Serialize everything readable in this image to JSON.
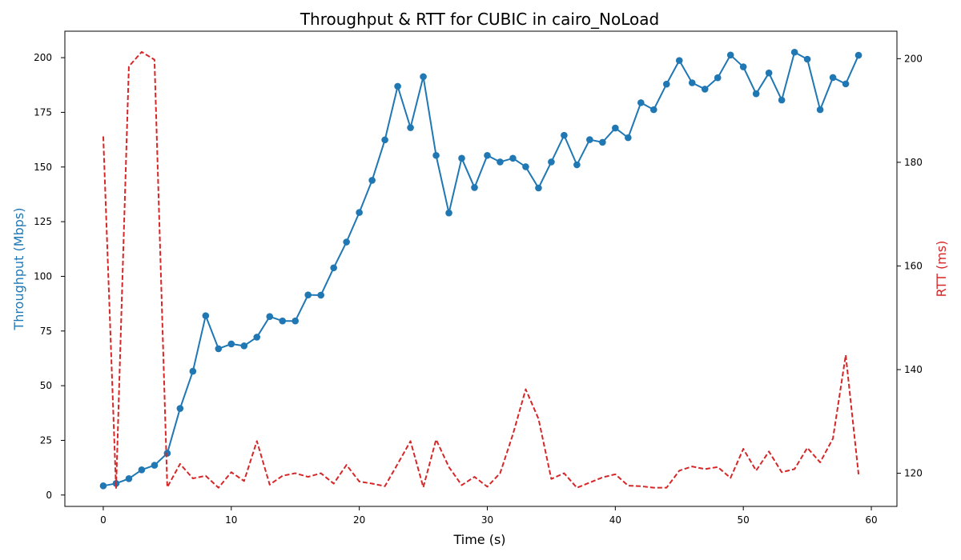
{
  "chart_data": {
    "type": "line",
    "title": "Throughput & RTT for CUBIC in cairo_NoLoad",
    "xlabel": "Time (s)",
    "ylabel_left": "Throughput (Mbps)",
    "ylabel_right": "RTT (ms)",
    "colors": {
      "throughput": "#1f77b4",
      "rtt": "#d62728"
    },
    "xlim": [
      -3,
      62
    ],
    "ylim_left": [
      -5.2,
      212.1
    ],
    "ylim_right": [
      113.6,
      205.3
    ],
    "x_ticks": [
      0,
      10,
      20,
      30,
      40,
      50,
      60
    ],
    "y_ticks_left": [
      0,
      25,
      50,
      75,
      100,
      125,
      150,
      175,
      200
    ],
    "y_ticks_right": [
      120,
      140,
      160,
      180,
      200
    ],
    "grid": false,
    "legend": "none",
    "x": [
      0,
      1,
      2,
      3,
      4,
      5,
      6,
      7,
      8,
      9,
      10,
      11,
      12,
      13,
      14,
      15,
      16,
      17,
      18,
      19,
      20,
      21,
      22,
      23,
      24,
      25,
      26,
      27,
      28,
      29,
      30,
      31,
      32,
      33,
      34,
      35,
      36,
      37,
      38,
      39,
      40,
      41,
      42,
      43,
      44,
      45,
      46,
      47,
      48,
      49,
      50,
      51,
      52,
      53,
      54,
      55,
      56,
      57,
      58,
      59
    ],
    "series": [
      {
        "key": "throughput",
        "axis": "left",
        "style": "solid-markers",
        "values": [
          4.2,
          5.3,
          7.5,
          11.5,
          13.6,
          19.1,
          39.6,
          56.6,
          82.0,
          66.9,
          69.1,
          68.2,
          72.2,
          81.6,
          79.6,
          79.6,
          91.5,
          91.4,
          103.9,
          115.7,
          129.2,
          143.9,
          162.4,
          186.9,
          168.0,
          191.3,
          155.3,
          129.0,
          154.0,
          140.6,
          155.3,
          152.3,
          154.0,
          150.1,
          140.4,
          152.3,
          164.5,
          151.0,
          162.5,
          161.3,
          167.8,
          163.4,
          179.4,
          176.2,
          187.9,
          198.7,
          188.5,
          185.6,
          190.8,
          201.2,
          195.8,
          183.5,
          193.0,
          180.6,
          202.5,
          199.3,
          176.2,
          190.9,
          188.0,
          201.1
        ]
      },
      {
        "key": "rtt",
        "axis": "right",
        "style": "dashed",
        "values": [
          185.0,
          117.0,
          198.5,
          201.3,
          199.8,
          117.3,
          121.8,
          119.0,
          119.5,
          117.2,
          120.2,
          118.5,
          126.2,
          117.8,
          119.5,
          120.0,
          119.3,
          120.0,
          118.0,
          121.6,
          118.4,
          118.0,
          117.5,
          121.8,
          126.2,
          117.3,
          126.5,
          121.2,
          117.7,
          119.3,
          117.4,
          120.0,
          127.5,
          136.2,
          130.5,
          118.9,
          120.0,
          117.2,
          118.2,
          119.2,
          119.8,
          117.6,
          117.5,
          117.2,
          117.2,
          120.5,
          121.3,
          120.8,
          121.2,
          119.1,
          124.7,
          120.5,
          124.2,
          120.2,
          120.8,
          124.9,
          122.1,
          126.7,
          142.8,
          119.8
        ]
      }
    ]
  }
}
